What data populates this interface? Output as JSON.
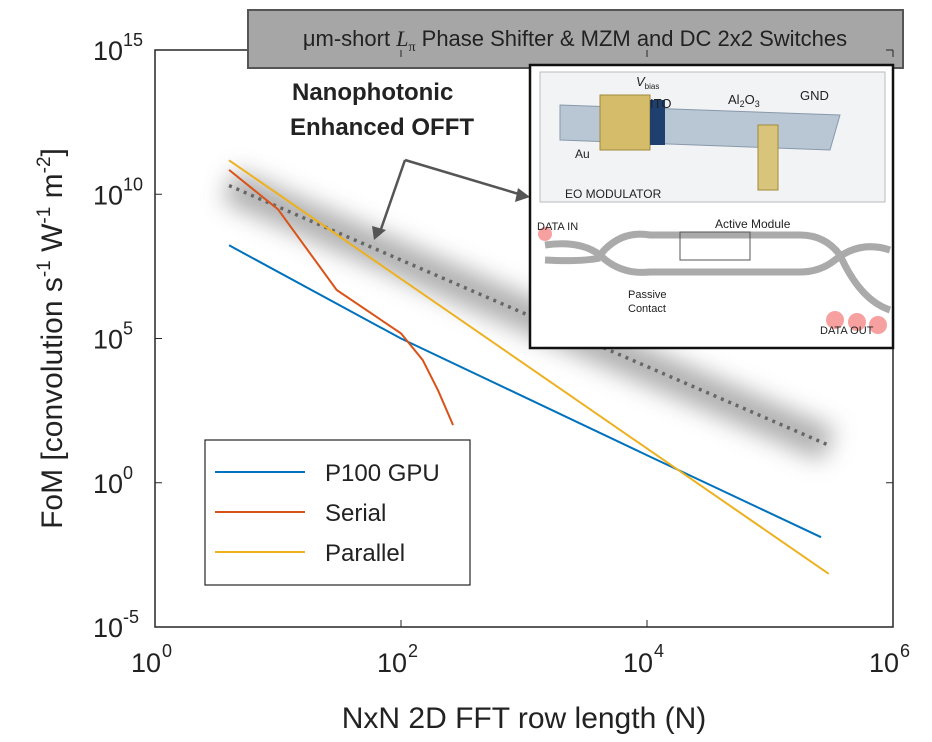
{
  "chart_data": {
    "type": "line",
    "banner": {
      "prefix": "μm-short ",
      "symbol": "L",
      "subscript": "π",
      "suffix": " Phase Shifter & MZM and DC 2x2 Switches"
    },
    "annotation": [
      "Nanophotonic",
      "Enhanced OFFT"
    ],
    "xlabel": "NxN 2D FFT row length (N)",
    "ylabel": [
      "FoM [convolution s",
      "-1",
      " W",
      "-1",
      " m",
      "-2",
      "]"
    ],
    "log_x": true,
    "log_y": true,
    "xlim": [
      1,
      1000000
    ],
    "ylim": [
      1e-05,
      1000000000000000
    ],
    "xticks": [
      {
        "value": 1,
        "label": "10",
        "exponent": "0"
      },
      {
        "value": 100,
        "label": "10",
        "exponent": "2"
      },
      {
        "value": 10000,
        "label": "10",
        "exponent": "4"
      },
      {
        "value": 1000000,
        "label": "10",
        "exponent": "6"
      }
    ],
    "yticks": [
      {
        "value": 1e-05,
        "label": "10",
        "exponent": "-5"
      },
      {
        "value": 1,
        "label": "10",
        "exponent": "0"
      },
      {
        "value": 100000,
        "label": "10",
        "exponent": "5"
      },
      {
        "value": 10000000000,
        "label": "10",
        "exponent": "10"
      },
      {
        "value": 1000000000000000,
        "label": "10",
        "exponent": "15"
      }
    ],
    "grid": false,
    "legend": "lower left",
    "series": [
      {
        "name": "P100 GPU",
        "color": "#0072bd",
        "x": [
          4,
          100,
          10000,
          260000
        ],
        "values": [
          170000000,
          100000,
          9,
          0.013
        ]
      },
      {
        "name": "Serial",
        "color": "#d95319",
        "x": [
          4,
          10,
          30,
          100,
          150,
          200,
          265
        ],
        "values": [
          70000000000,
          3000000000,
          4800000,
          150000,
          18000,
          1600,
          100
        ]
      },
      {
        "name": "Parallel",
        "color": "#edb120",
        "x": [
          4,
          300000
        ],
        "values": [
          150000000000,
          0.0007
        ]
      }
    ],
    "reference_line": {
      "color": "#666666",
      "x": [
        4,
        300000
      ],
      "values": [
        20000000000,
        20
      ]
    },
    "inset_labels": [
      "ITO",
      "GND",
      "Au",
      "EO MODULATOR",
      "DATA IN",
      "Active Module",
      "Passive",
      "Contact",
      "DATA OUT"
    ],
    "inset_vbias": [
      "V",
      "bias"
    ],
    "inset_al2o3": [
      "Al",
      "2",
      "O",
      "3"
    ]
  }
}
